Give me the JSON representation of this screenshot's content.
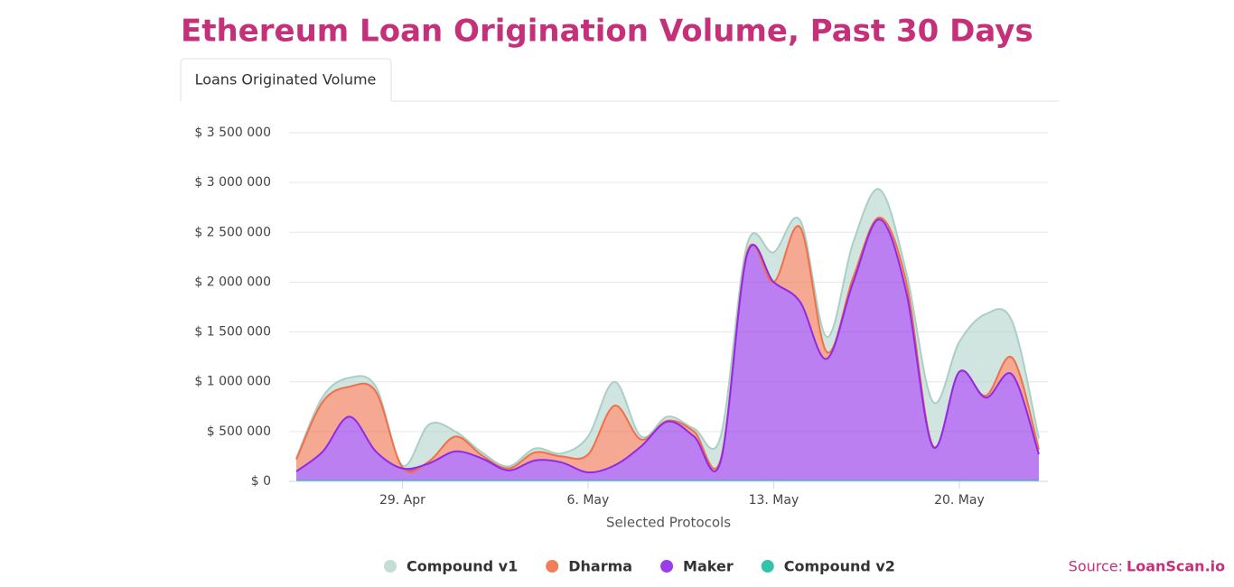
{
  "chart_data": {
    "type": "stacked_area",
    "title": "Ethereum Loan Origination Volume, Past 30 Days",
    "tab": "Loans Originated Volume",
    "x_label": "Selected Protocols",
    "source_label": "Source:",
    "source_name": "LoanScan.io",
    "x": [
      "25. Apr",
      "26. Apr",
      "27. Apr",
      "28. Apr",
      "29. Apr",
      "30. Apr",
      "1. May",
      "2. May",
      "3. May",
      "4. May",
      "5. May",
      "6. May",
      "7. May",
      "8. May",
      "9. May",
      "10. May",
      "11. May",
      "12. May",
      "13. May",
      "14. May",
      "15. May",
      "16. May",
      "17. May",
      "18. May",
      "19. May",
      "20. May",
      "21. May",
      "22. May",
      "23. May"
    ],
    "xticks": [
      "29. Apr",
      "6. May",
      "13. May",
      "20. May"
    ],
    "ylim": [
      0,
      3500000
    ],
    "yticks": [
      {
        "value": 0,
        "label": "$ 0"
      },
      {
        "value": 500000,
        "label": "$ 500 000"
      },
      {
        "value": 1000000,
        "label": "$ 1 000 000"
      },
      {
        "value": 1500000,
        "label": "$ 1 500 000"
      },
      {
        "value": 2000000,
        "label": "$ 2 000 000"
      },
      {
        "value": 2500000,
        "label": "$ 2 500 000"
      },
      {
        "value": 3000000,
        "label": "$ 3 000 000"
      },
      {
        "value": 3500000,
        "label": "$ 3 500 000"
      }
    ],
    "grid": true,
    "stacked": true,
    "series": [
      {
        "name": "Compound v1",
        "color": "#a9cfc6",
        "values": [
          10000,
          50000,
          90000,
          50000,
          20000,
          370000,
          50000,
          30000,
          20000,
          40000,
          30000,
          180000,
          240000,
          30000,
          40000,
          30000,
          230000,
          80000,
          300000,
          70000,
          150000,
          350000,
          280000,
          100000,
          440000,
          300000,
          820000,
          360000,
          110000
        ]
      },
      {
        "name": "Dharma",
        "color": "#ef7049",
        "values": [
          120000,
          500000,
          300000,
          600000,
          10000,
          20000,
          150000,
          30000,
          20000,
          80000,
          60000,
          180000,
          600000,
          70000,
          10000,
          50000,
          20000,
          20000,
          0,
          750000,
          70000,
          50000,
          20000,
          100000,
          10000,
          0,
          20000,
          170000,
          50000
        ]
      },
      {
        "name": "Maker",
        "color": "#9029e8",
        "values": [
          95000,
          295000,
          645000,
          295000,
          125000,
          175000,
          295000,
          225000,
          105000,
          205000,
          185000,
          85000,
          155000,
          345000,
          595000,
          445000,
          195000,
          2275000,
          1995000,
          1795000,
          1225000,
          1995000,
          2625000,
          1895000,
          345000,
          1095000,
          835000,
          1065000,
          265000
        ]
      },
      {
        "name": "Compound v2",
        "color": "#1abfa2",
        "values": [
          5000,
          5000,
          5000,
          5000,
          5000,
          5000,
          5000,
          5000,
          5000,
          5000,
          5000,
          5000,
          5000,
          5000,
          5000,
          5000,
          5000,
          5000,
          5000,
          5000,
          5000,
          5000,
          5000,
          5000,
          5000,
          5000,
          5000,
          5000,
          5000
        ]
      }
    ]
  }
}
